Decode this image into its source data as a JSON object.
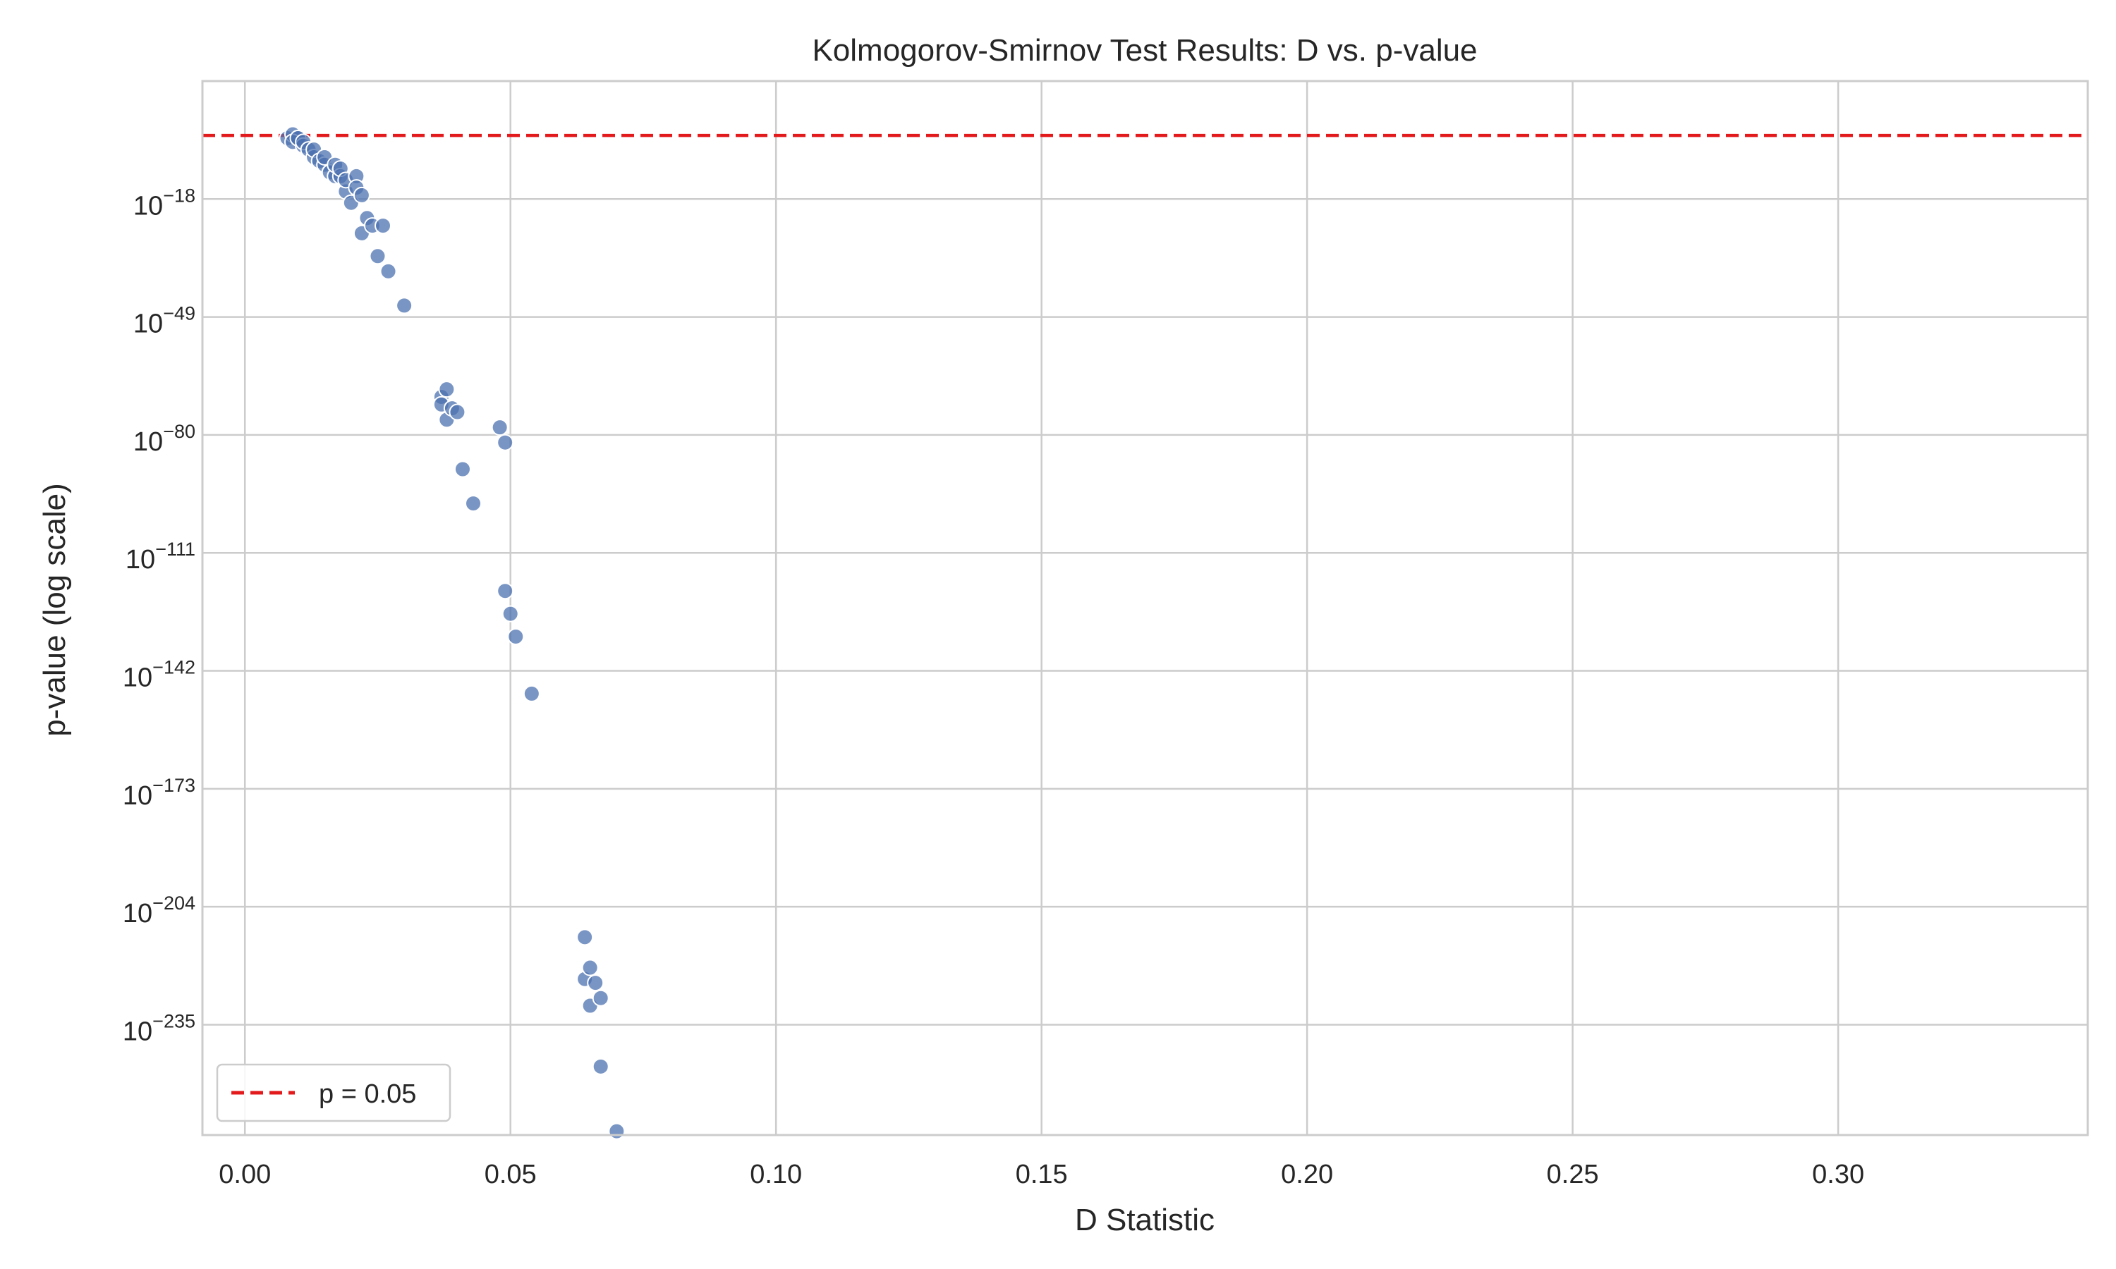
{
  "chart_data": {
    "type": "scatter",
    "title": "Kolmogorov-Smirnov Test Results: D vs. p-value",
    "xlabel": "D Statistic",
    "ylabel": "p-value (log scale)",
    "xlim": [
      -0.008,
      0.347
    ],
    "ylim_log10": [
      -264,
      13
    ],
    "y_scale": "log",
    "x_ticks": [
      "0.00",
      "0.05",
      "0.10",
      "0.15",
      "0.20",
      "0.25",
      "0.30"
    ],
    "x_tick_values": [
      0.0,
      0.05,
      0.1,
      0.15,
      0.2,
      0.25,
      0.3
    ],
    "y_tick_base": "10",
    "y_tick_exponents": [
      "−18",
      "−49",
      "−80",
      "−111",
      "−142",
      "−173",
      "−204",
      "−235"
    ],
    "y_tick_exponent_values": [
      -18,
      -49,
      -80,
      -111,
      -142,
      -173,
      -204,
      -235
    ],
    "grid": true,
    "threshold": {
      "label": "p = 0.05",
      "value": 0.05,
      "color": "#e31a1c",
      "style": "dashed"
    },
    "legend": {
      "position": "lower-left"
    },
    "marker_color": "#4c72b0",
    "series": [
      {
        "x": [
          0.008,
          0.009,
          0.01,
          0.009,
          0.01,
          0.011,
          0.011,
          0.012,
          0.013,
          0.013,
          0.014,
          0.015,
          0.015,
          0.016,
          0.017,
          0.017,
          0.018,
          0.018,
          0.019,
          0.019,
          0.02,
          0.021,
          0.021,
          0.022,
          0.022,
          0.023,
          0.024,
          0.025,
          0.026,
          0.027,
          0.03,
          0.037,
          0.037,
          0.038,
          0.038,
          0.039,
          0.04,
          0.041,
          0.043,
          0.048,
          0.049,
          0.049,
          0.05,
          0.051,
          0.054,
          0.064,
          0.064,
          0.065,
          0.065,
          0.066,
          0.067,
          0.067,
          0.07
        ],
        "y_log10": [
          -2,
          -1,
          -2,
          -3,
          -2,
          -4,
          -3,
          -5,
          -7,
          -5,
          -8,
          -9,
          -7,
          -11,
          -12,
          -9,
          -12,
          -10,
          -16,
          -13,
          -19,
          -12,
          -15,
          -27,
          -17,
          -23,
          -25,
          -33,
          -25,
          -37,
          -46,
          -70,
          -72,
          -68,
          -76,
          -73,
          -74,
          -89,
          -98,
          -78,
          -82,
          -121,
          -127,
          -133,
          -148,
          -212,
          -223,
          -220,
          -230,
          -224,
          -228,
          -246,
          -263
        ]
      }
    ]
  }
}
